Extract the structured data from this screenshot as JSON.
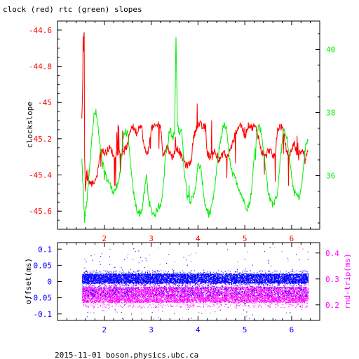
{
  "title": "clock (red) rtc (green) slopes",
  "footer": "2015-11-01 boson.physics.ubc.ca",
  "colors": {
    "clock": "#ff0000",
    "rtc": "#00ee00",
    "offset": "#0000ff",
    "rndtrip": "#ff00ff",
    "axis": "#000000"
  },
  "chart_data": [
    {
      "type": "line",
      "xlim": [
        1.0,
        6.6
      ],
      "x_ticks": [
        2,
        3,
        4,
        5,
        6
      ],
      "left_axis": {
        "ylabel": "clockslope",
        "ylim": [
          -45.7,
          -44.55
        ],
        "ticks": [
          -44.6,
          -44.8,
          -45,
          -45.2,
          -45.4,
          -45.6
        ],
        "color": "#ff0000"
      },
      "right_axis": {
        "ylabel": "",
        "ylim": [
          34.3,
          40.9
        ],
        "ticks": [
          36,
          38,
          40
        ],
        "color": "#00ee00"
      },
      "series": [
        {
          "name": "clock",
          "axis": "left",
          "x": [
            1.52,
            1.55,
            1.57,
            1.58,
            1.6,
            1.62,
            1.63,
            1.65,
            1.68,
            1.72,
            1.78,
            1.85,
            1.9,
            1.95,
            2.0,
            2.05,
            2.1,
            2.15,
            2.2,
            2.25,
            2.3,
            2.35,
            2.4,
            2.45,
            2.5,
            2.55,
            2.6,
            2.65,
            2.7,
            2.75,
            2.8,
            2.85,
            2.9,
            2.95,
            3.0,
            3.05,
            3.1,
            3.15,
            3.2,
            3.25,
            3.3,
            3.35,
            3.4,
            3.45,
            3.5,
            3.55,
            3.6,
            3.65,
            3.7,
            3.75,
            3.8,
            3.85,
            3.9,
            3.95,
            4.0,
            4.05,
            4.1,
            4.15,
            4.2,
            4.25,
            4.3,
            4.35,
            4.4,
            4.45,
            4.5,
            4.55,
            4.6,
            4.65,
            4.7,
            4.75,
            4.8,
            4.85,
            4.9,
            4.95,
            5.0,
            5.05,
            5.1,
            5.15,
            5.2,
            5.25,
            5.3,
            5.35,
            5.4,
            5.45,
            5.5,
            5.55,
            5.6,
            5.65,
            5.7,
            5.75,
            5.8,
            5.85,
            5.9,
            5.95,
            6.0,
            6.05,
            6.1,
            6.15,
            6.2,
            6.25,
            6.3,
            6.35
          ],
          "y": [
            -45.1,
            -44.75,
            -44.6,
            -45.3,
            -45.5,
            -45.38,
            -45.42,
            -45.42,
            -45.44,
            -45.45,
            -45.44,
            -45.4,
            -45.28,
            -45.26,
            -45.28,
            -45.27,
            -45.25,
            -45.26,
            -45.3,
            -45.28,
            -45.27,
            -45.28,
            -45.29,
            -45.25,
            -45.24,
            -45.15,
            -45.13,
            -45.15,
            -45.17,
            -45.12,
            -45.14,
            -45.25,
            -45.28,
            -45.26,
            -45.14,
            -45.14,
            -45.13,
            -45.12,
            -45.13,
            -45.28,
            -45.27,
            -45.24,
            -45.28,
            -45.3,
            -45.28,
            -45.25,
            -45.27,
            -45.3,
            -45.32,
            -45.35,
            -45.34,
            -45.33,
            -45.2,
            -45.15,
            -45.12,
            -45.12,
            -45.14,
            -45.13,
            -45.28,
            -45.3,
            -45.28,
            -45.27,
            -45.3,
            -45.32,
            -45.3,
            -45.27,
            -45.3,
            -45.29,
            -45.25,
            -45.22,
            -45.17,
            -45.14,
            -45.12,
            -45.14,
            -45.2,
            -45.14,
            -45.12,
            -45.14,
            -45.13,
            -45.15,
            -45.2,
            -45.27,
            -45.28,
            -45.3,
            -45.26,
            -45.27,
            -45.3,
            -45.28,
            -45.15,
            -45.13,
            -45.14,
            -45.2,
            -45.28,
            -45.3,
            -45.26,
            -45.22,
            -45.27,
            -45.3,
            -45.26,
            -45.28,
            -45.3,
            -45.27
          ]
        },
        {
          "name": "rtc",
          "axis": "right",
          "x": [
            1.52,
            1.55,
            1.58,
            1.62,
            1.66,
            1.7,
            1.74,
            1.78,
            1.82,
            1.86,
            1.9,
            1.95,
            2.0,
            2.05,
            2.1,
            2.15,
            2.2,
            2.25,
            2.3,
            2.35,
            2.4,
            2.45,
            2.5,
            2.55,
            2.6,
            2.65,
            2.7,
            2.75,
            2.8,
            2.85,
            2.9,
            2.95,
            3.0,
            3.05,
            3.1,
            3.15,
            3.2,
            3.25,
            3.3,
            3.35,
            3.4,
            3.45,
            3.5,
            3.53,
            3.56,
            3.6,
            3.65,
            3.7,
            3.75,
            3.8,
            3.85,
            3.9,
            3.95,
            4.0,
            4.05,
            4.1,
            4.15,
            4.2,
            4.25,
            4.3,
            4.35,
            4.4,
            4.45,
            4.5,
            4.55,
            4.6,
            4.65,
            4.7,
            4.75,
            4.8,
            4.85,
            4.9,
            4.95,
            5.0,
            5.05,
            5.1,
            5.15,
            5.2,
            5.25,
            5.3,
            5.35,
            5.4,
            5.45,
            5.5,
            5.55,
            5.6,
            5.65,
            5.7,
            5.75,
            5.8,
            5.85,
            5.9,
            5.95,
            6.0,
            6.05,
            6.1,
            6.15,
            6.2,
            6.25,
            6.3,
            6.35
          ],
          "y": [
            36.5,
            35.5,
            34.6,
            35.1,
            35.7,
            36.5,
            37.4,
            37.9,
            38.0,
            37.6,
            37.0,
            36.5,
            36.2,
            35.9,
            35.8,
            35.6,
            35.5,
            35.6,
            35.7,
            36.3,
            37.2,
            37.4,
            37.3,
            36.5,
            35.7,
            35.2,
            34.9,
            34.8,
            34.9,
            35.4,
            36.0,
            35.2,
            34.9,
            34.8,
            34.8,
            35.0,
            35.1,
            35.5,
            36.5,
            37.0,
            37.5,
            37.2,
            37.3,
            40.4,
            37.6,
            37.4,
            37.5,
            36.3,
            35.6,
            35.3,
            35.2,
            35.3,
            35.7,
            36.3,
            36.3,
            35.7,
            35.1,
            34.9,
            34.8,
            35.0,
            35.5,
            36.2,
            36.8,
            37.3,
            37.6,
            37.5,
            36.9,
            36.2,
            36.0,
            35.9,
            35.7,
            35.5,
            35.3,
            35.1,
            35.0,
            35.1,
            35.6,
            36.6,
            37.3,
            37.6,
            37.4,
            36.8,
            36.1,
            35.5,
            35.2,
            35.1,
            35.2,
            35.5,
            36.4,
            37.1,
            37.5,
            37.2,
            36.6,
            35.9,
            35.5,
            35.4,
            35.3,
            35.5,
            36.2,
            37.0,
            37.1
          ]
        }
      ]
    },
    {
      "type": "scatter",
      "xlim": [
        1.0,
        6.6
      ],
      "x_ticks": [
        2,
        3,
        4,
        5,
        6
      ],
      "left_axis": {
        "ylabel": "offset(ms)",
        "ylim": [
          -0.12,
          0.12
        ],
        "ticks": [
          0.1,
          0.05,
          0,
          -0.05,
          -0.1
        ],
        "tick_labels": [
          "0.1",
          "0.05",
          "0",
          "-0.05",
          "-0.1"
        ],
        "color": "#0000ff"
      },
      "right_axis": {
        "ylabel": "rnd-trip(ms)",
        "ylim": [
          0.14,
          0.44
        ],
        "ticks": [
          0.4,
          0.3,
          0.2
        ],
        "tick_labels": [
          "0.4",
          "0.3",
          "0.2"
        ],
        "color": "#ff00ff"
      },
      "series": [
        {
          "name": "offset",
          "axis": "left",
          "x_range": [
            1.52,
            6.35
          ],
          "band": [
            -0.005,
            0.025
          ],
          "spread": [
            -0.045,
            0.035
          ]
        },
        {
          "name": "rnd-trip",
          "axis": "right",
          "x_range": [
            1.52,
            6.35
          ],
          "band": [
            0.21,
            0.27
          ],
          "spread": [
            0.19,
            0.3
          ]
        }
      ]
    }
  ]
}
